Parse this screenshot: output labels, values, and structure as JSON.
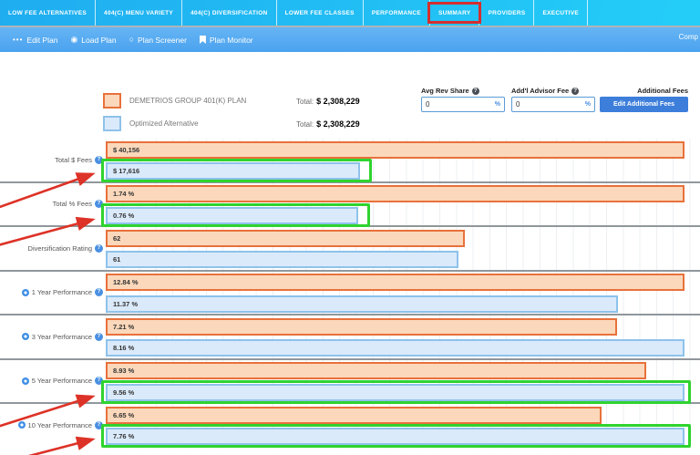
{
  "tabs": {
    "items": [
      {
        "label": "LOW FEE ALTERNATIVES",
        "selected": false
      },
      {
        "label": "404(C) MENU VARIETY",
        "selected": false
      },
      {
        "label": "404(C) DIVERSIFICATION",
        "selected": false
      },
      {
        "label": "LOWER FEE CLASSES",
        "selected": false
      },
      {
        "label": "PERFORMANCE",
        "selected": false
      },
      {
        "label": "SUMMARY",
        "selected": true
      },
      {
        "label": "PROVIDERS",
        "selected": false
      },
      {
        "label": "EXECUTIVE",
        "selected": false
      }
    ]
  },
  "toolbar": {
    "items": [
      {
        "icon": "ellipsis-icon",
        "label": "Edit Plan"
      },
      {
        "icon": "target-icon",
        "label": "Load Plan"
      },
      {
        "icon": "circle-icon",
        "label": "Plan Screener"
      },
      {
        "icon": "bookmark-icon",
        "label": "Plan Monitor"
      }
    ],
    "right_text": "Comp"
  },
  "legend": {
    "plan": {
      "name": "DEMETRIOS GROUP 401(K) PLAN",
      "total_label": "Total:",
      "total_value": "$ 2,308,229",
      "color": "#fbd8bb",
      "border": "#e8713b"
    },
    "alternative": {
      "name": "Optimized Alternative",
      "total_label": "Total:",
      "total_value": "$ 2,308,229",
      "color": "#daeafb",
      "border": "#8ec2eb"
    }
  },
  "fees": {
    "avg_rev_share": {
      "label": "Avg Rev Share",
      "value": "0",
      "suffix": "%"
    },
    "addl_advisor_fee": {
      "label": "Add'l Advisor Fee",
      "value": "0",
      "suffix": "%"
    },
    "additional_fees_label": "Additional Fees",
    "edit_button_label": "Edit Additional Fees"
  },
  "chart_data": {
    "type": "bar",
    "orientation": "horizontal",
    "series": [
      {
        "name": "DEMETRIOS GROUP 401(K) PLAN",
        "color": "#fbd8bb",
        "border": "#e8713b"
      },
      {
        "name": "Optimized Alternative",
        "color": "#daeafb",
        "border": "#8ec2eb"
      }
    ],
    "legend_position": "top-left",
    "grid": "vertical-light",
    "rows": [
      {
        "label": "Total $ Fees",
        "gear_icon": false,
        "help_icon": true,
        "plan_value": 40156,
        "plan_display": "$ 40,156",
        "alt_value": 17616,
        "alt_display": "$ 17,616",
        "scale_max": 40156,
        "alt_highlighted": true,
        "arrow": true
      },
      {
        "label": "Total % Fees",
        "gear_icon": false,
        "help_icon": true,
        "plan_value": 1.74,
        "plan_display": "1.74 %",
        "alt_value": 0.76,
        "alt_display": "0.76 %",
        "scale_max": 1.74,
        "alt_highlighted": true,
        "arrow": true
      },
      {
        "label": "Diversification Rating",
        "gear_icon": false,
        "help_icon": true,
        "plan_value": 62,
        "plan_display": "62",
        "alt_value": 61,
        "alt_display": "61",
        "scale_max": 100,
        "alt_highlighted": false,
        "arrow": false
      },
      {
        "label": "1 Year Performance",
        "gear_icon": true,
        "help_icon": true,
        "plan_value": 12.84,
        "plan_display": "12.84 %",
        "alt_value": 11.37,
        "alt_display": "11.37 %",
        "scale_max": 12.84,
        "alt_highlighted": false,
        "arrow": false
      },
      {
        "label": "3 Year Performance",
        "gear_icon": true,
        "help_icon": true,
        "plan_value": 7.21,
        "plan_display": "7.21 %",
        "alt_value": 8.16,
        "alt_display": "8.16 %",
        "scale_max": 8.16,
        "alt_highlighted": false,
        "arrow": false
      },
      {
        "label": "5 Year Performance",
        "gear_icon": true,
        "help_icon": true,
        "plan_value": 8.93,
        "plan_display": "8.93 %",
        "alt_value": 9.56,
        "alt_display": "9.56 %",
        "scale_max": 9.56,
        "alt_highlighted": true,
        "arrow": true
      },
      {
        "label": "10 Year Performance",
        "gear_icon": true,
        "help_icon": true,
        "plan_value": 6.65,
        "plan_display": "6.65 %",
        "alt_value": 7.76,
        "alt_display": "7.76 %",
        "scale_max": 7.76,
        "alt_highlighted": true,
        "arrow": true
      }
    ],
    "annotation_colors": {
      "highlight_green": "#2fd32f",
      "arrow_red": "#dd3227",
      "selected_tab_red": "#d42f2f"
    }
  }
}
